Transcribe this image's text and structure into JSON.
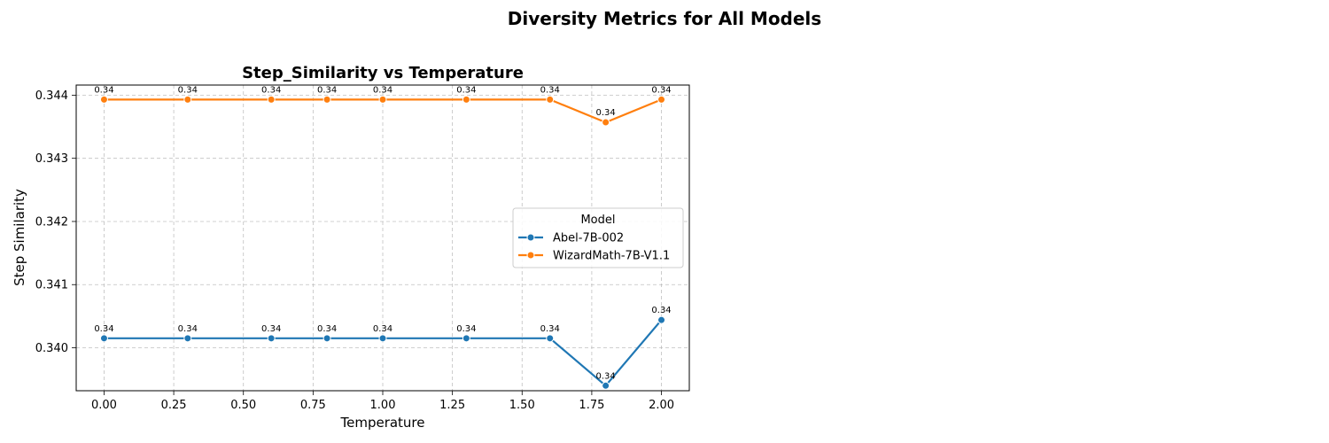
{
  "figure": {
    "suptitle": "Diversity Metrics for All Models"
  },
  "chart_data": {
    "type": "line",
    "title": "Step_Similarity vs Temperature",
    "xlabel": "Temperature",
    "ylabel": "Step Similarity",
    "xlim": [
      -0.1,
      2.1
    ],
    "ylim": [
      0.33932,
      0.34416
    ],
    "x_ticks": [
      "0.00",
      "0.25",
      "0.50",
      "0.75",
      "1.00",
      "1.25",
      "1.50",
      "1.75",
      "2.00"
    ],
    "y_ticks": [
      "0.340",
      "0.341",
      "0.342",
      "0.343",
      "0.344"
    ],
    "grid": true,
    "legend": {
      "title": "Model",
      "placement": "center-right"
    },
    "x": [
      0.0,
      0.3,
      0.6,
      0.8,
      1.0,
      1.3,
      1.6,
      1.8,
      2.0
    ],
    "series": [
      {
        "name": "Abel-7B-002",
        "color": "#1f77b4",
        "values": [
          0.34015,
          0.34015,
          0.34015,
          0.34015,
          0.34015,
          0.34015,
          0.34015,
          0.3394,
          0.34044
        ],
        "labels": [
          "0.34",
          "0.34",
          "0.34",
          "0.34",
          "0.34",
          "0.34",
          "0.34",
          "0.34",
          "0.34"
        ]
      },
      {
        "name": "WizardMath-7B-V1.1",
        "color": "#ff7f0e",
        "values": [
          0.34393,
          0.34393,
          0.34393,
          0.34393,
          0.34393,
          0.34393,
          0.34393,
          0.34357,
          0.34393
        ],
        "labels": [
          "0.34",
          "0.34",
          "0.34",
          "0.34",
          "0.34",
          "0.34",
          "0.34",
          "0.34",
          "0.34"
        ]
      }
    ]
  }
}
